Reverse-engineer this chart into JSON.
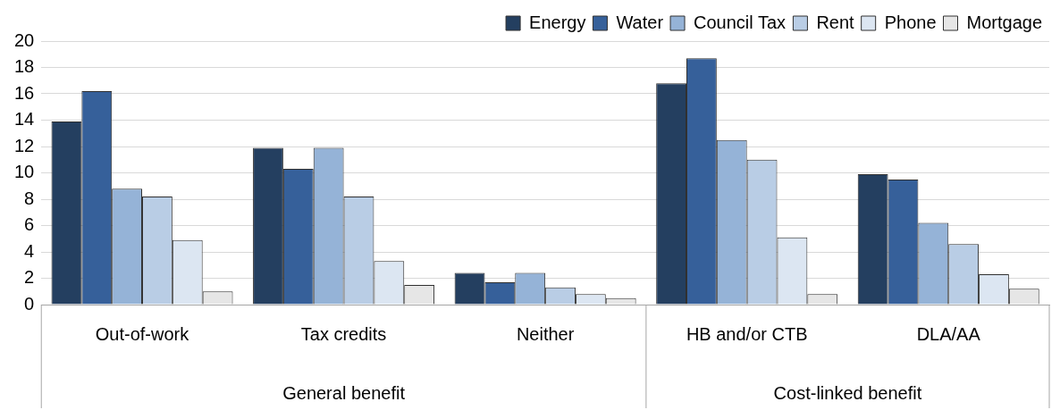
{
  "chart_data": {
    "type": "bar",
    "categories": [
      "Out-of-work",
      "Tax credits",
      "Neither",
      "HB and/or CTB",
      "DLA/AA"
    ],
    "series": [
      {
        "name": "Energy",
        "color": "#243f60",
        "values": [
          13.9,
          11.9,
          2.4,
          16.8,
          9.9
        ]
      },
      {
        "name": "Water",
        "color": "#36609a",
        "values": [
          16.2,
          10.3,
          1.7,
          18.7,
          9.5
        ]
      },
      {
        "name": "Council Tax",
        "color": "#95b3d7",
        "values": [
          8.8,
          11.9,
          2.4,
          12.5,
          6.2
        ]
      },
      {
        "name": "Rent",
        "color": "#b9cde5",
        "values": [
          8.2,
          8.2,
          1.3,
          11.0,
          4.6
        ]
      },
      {
        "name": "Phone",
        "color": "#dce6f2",
        "values": [
          4.9,
          3.3,
          0.8,
          5.1,
          2.3
        ]
      },
      {
        "name": "Mortgage",
        "color": "#e6e6e6",
        "values": [
          1.0,
          1.5,
          0.5,
          0.8,
          1.2
        ]
      }
    ],
    "ylim": [
      0,
      20
    ],
    "yticks": [
      0,
      2,
      4,
      6,
      8,
      10,
      12,
      14,
      16,
      18,
      20
    ],
    "grid": "y",
    "legend": "top right",
    "annotations": [
      "General benefit",
      "Cost-linked benefit"
    ]
  }
}
